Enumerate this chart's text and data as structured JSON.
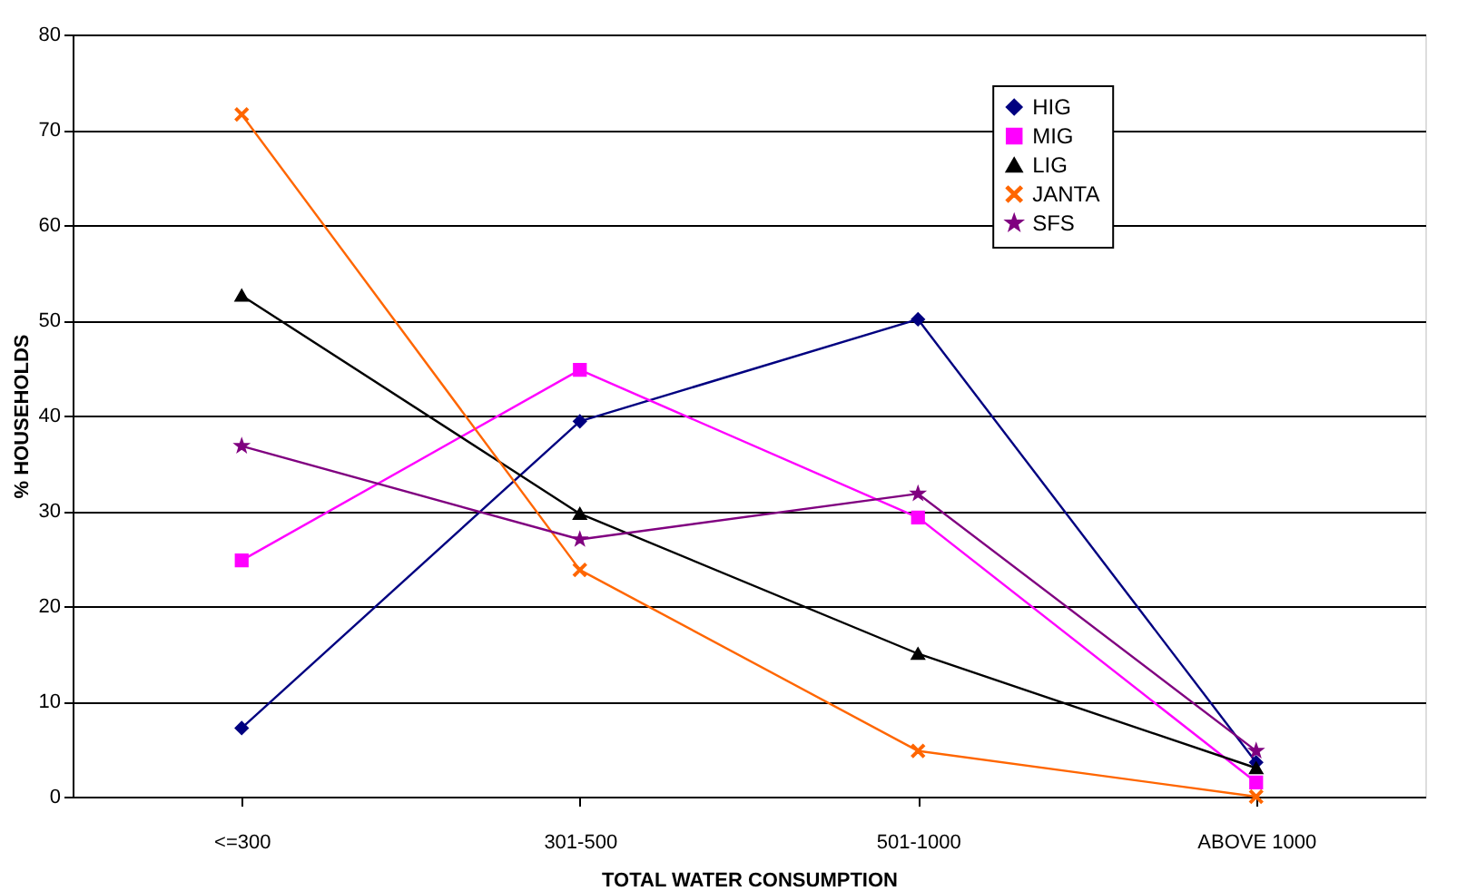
{
  "chart_data": {
    "type": "line",
    "xlabel": "TOTAL WATER CONSUMPTION",
    "ylabel": "% HOUSEHOLDS",
    "categories": [
      "<=300",
      "301-500",
      "501-1000",
      "ABOVE 1000"
    ],
    "series": [
      {
        "name": "HIG",
        "color": "#000080",
        "marker": "diamond",
        "values": [
          7.2,
          39.4,
          50.1,
          3.6
        ]
      },
      {
        "name": "MIG",
        "color": "#ff00ff",
        "marker": "square",
        "values": [
          24.8,
          44.8,
          29.3,
          1.5
        ]
      },
      {
        "name": "LIG",
        "color": "#000000",
        "marker": "triangle",
        "values": [
          52.6,
          29.7,
          15.0,
          3.0
        ]
      },
      {
        "name": "JANTA",
        "color": "#ff6600",
        "marker": "cross",
        "values": [
          71.6,
          23.8,
          4.8,
          0
        ]
      },
      {
        "name": "SFS",
        "color": "#800080",
        "marker": "star",
        "values": [
          36.8,
          27.0,
          31.8,
          4.8
        ]
      }
    ],
    "ylim": [
      0,
      80
    ],
    "yticks": [
      0,
      10,
      20,
      30,
      40,
      50,
      60,
      70,
      80
    ],
    "grid": "y",
    "legend": "top right",
    "line_style": "solid"
  }
}
